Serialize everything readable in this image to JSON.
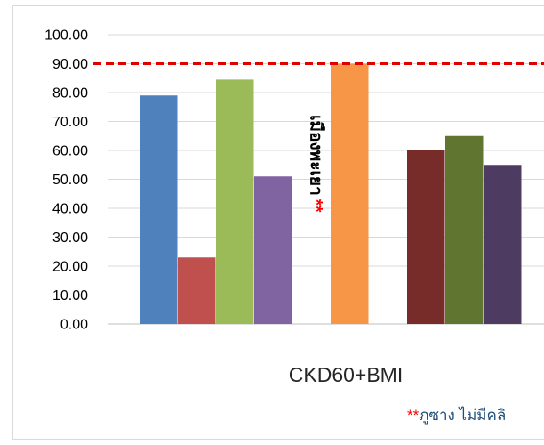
{
  "chart_data": {
    "type": "bar",
    "xlabel": "CKD60+BMI",
    "ylim": [
      0,
      100
    ],
    "ytick_step": 10,
    "ytick_labels": [
      "0.00",
      "10.00",
      "20.00",
      "30.00",
      "40.00",
      "50.00",
      "60.00",
      "70.00",
      "80.00",
      "90.00",
      "100.00"
    ],
    "grid": true,
    "reference_line": {
      "value": 90,
      "color": "#e00000",
      "style": "dashed"
    },
    "series": [
      {
        "value": 79,
        "color": "#4f81bd"
      },
      {
        "value": 23,
        "color": "#c0504d"
      },
      {
        "value": 84.5,
        "color": "#9bbb59"
      },
      {
        "value": 51,
        "color": "#8064a2"
      },
      {
        "value": null,
        "color": "#ffffff",
        "label": "เมืองพะเยา",
        "label_marker": "**"
      },
      {
        "value": 90,
        "color": "#f79646"
      },
      {
        "value": null,
        "color": "#ffffff"
      },
      {
        "value": 60,
        "color": "#772c2a"
      },
      {
        "value": 65,
        "color": "#5f7530"
      },
      {
        "value": 55,
        "color": "#4d3b62"
      }
    ],
    "footnote": {
      "marker": "**",
      "text": "ภูซาง ไม่มีคลิ",
      "marker_color": "#ff0000",
      "text_color": "#1f4e79"
    }
  }
}
